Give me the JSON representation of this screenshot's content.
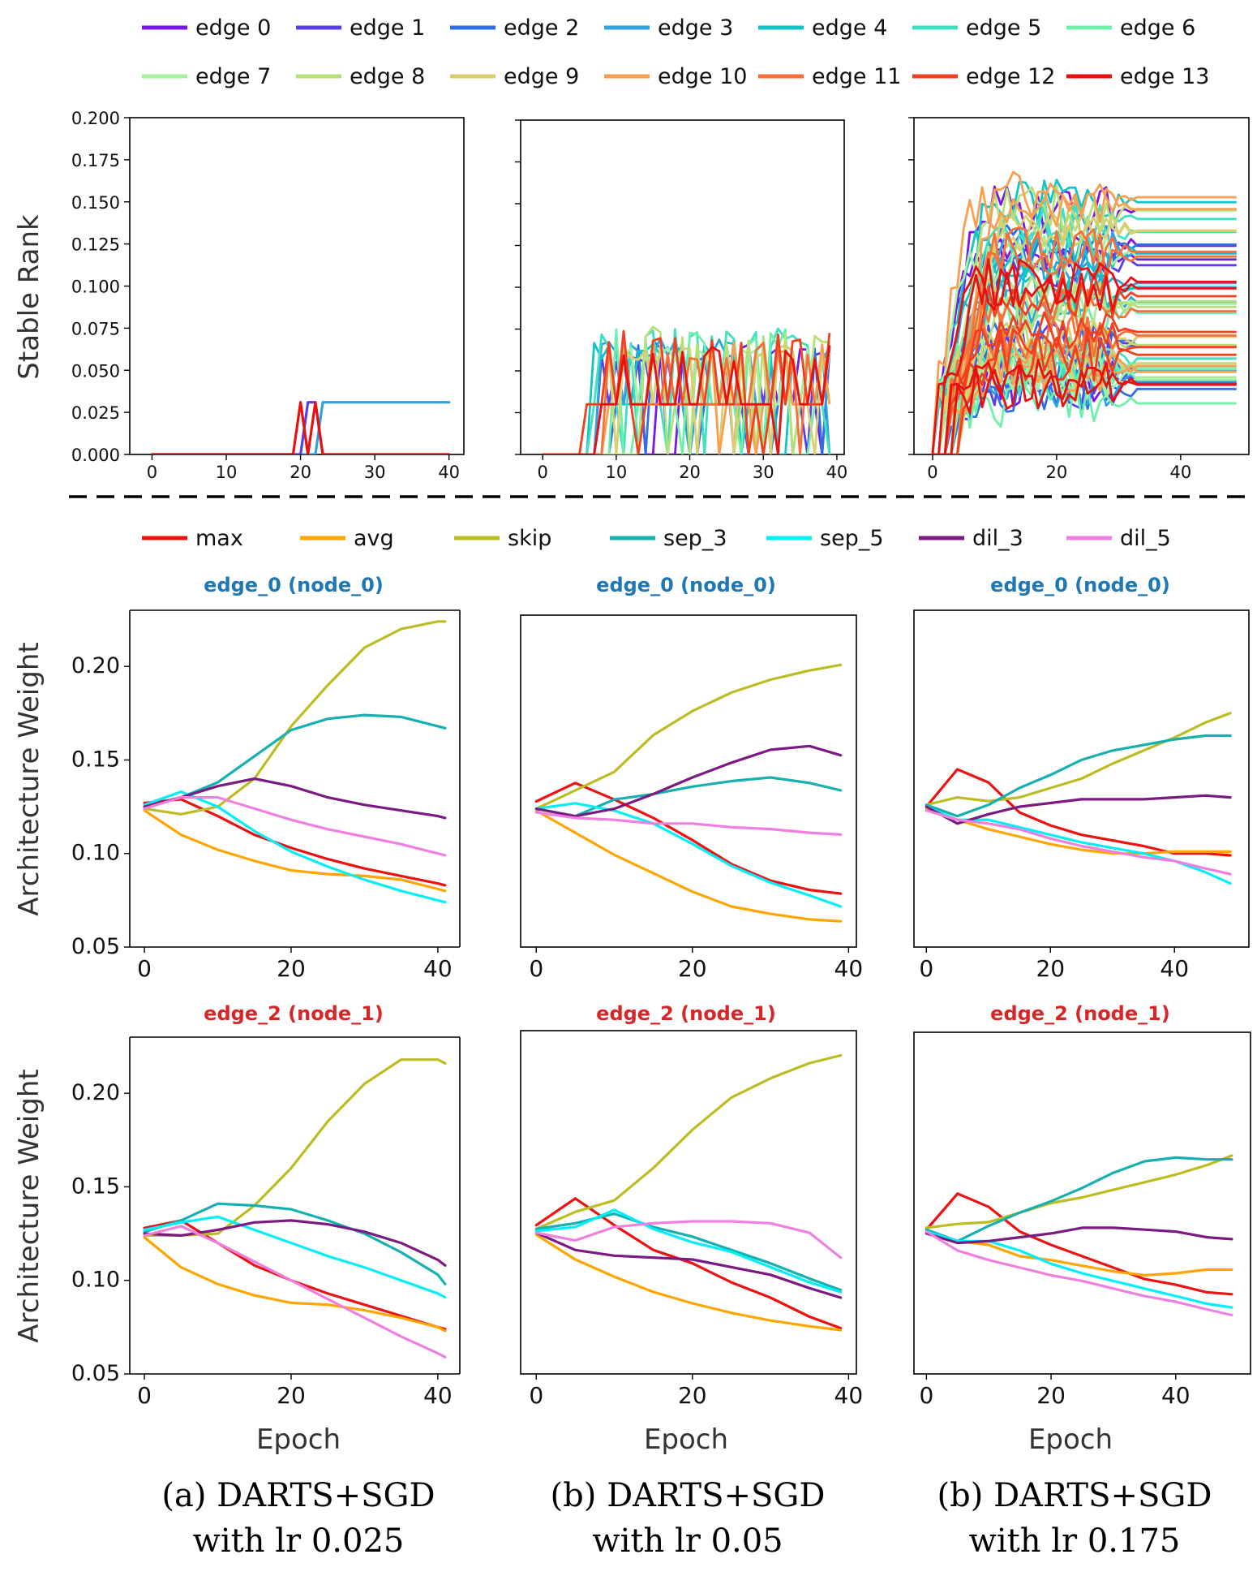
{
  "colors": {
    "edge_palette": [
      "#7b16e8",
      "#5a3ee8",
      "#2f6ee8",
      "#2ea3e0",
      "#12c4c8",
      "#3fe0c0",
      "#6ff0a8",
      "#a8f0a0",
      "#b8e07a",
      "#d8d070",
      "#f8a050",
      "#f87038",
      "#f04020",
      "#e81010"
    ],
    "ops": {
      "max": "#ee1111",
      "avg": "#ffa500",
      "skip": "#bcbd22",
      "sep_3": "#17b0b0",
      "sep_5": "#00f0f8",
      "dil_3": "#7b1a80",
      "dil_5": "#f080e0"
    },
    "subtitle_node0": "#1f77b4",
    "subtitle_node1": "#d62728"
  },
  "legend_edges": [
    "edge 0",
    "edge 1",
    "edge 2",
    "edge 3",
    "edge 4",
    "edge 5",
    "edge 6",
    "edge 7",
    "edge 8",
    "edge 9",
    "edge 10",
    "edge 11",
    "edge 12",
    "edge 13"
  ],
  "legend_ops": [
    "max",
    "avg",
    "skip",
    "sep_3",
    "sep_5",
    "dil_3",
    "dil_5"
  ],
  "labels": {
    "stable_rank": "Stable Rank",
    "arch_weight": "Architecture Weight",
    "epoch": "Epoch",
    "edge0_title": "edge_0 (node_0)",
    "edge2_title": "edge_2 (node_1)"
  },
  "captions": [
    {
      "line1": "(a) DARTS+SGD",
      "line2": "with lr 0.025"
    },
    {
      "line1": "(b) DARTS+SGD",
      "line2": "with lr 0.05"
    },
    {
      "line1": "(b) DARTS+SGD",
      "line2": "with lr 0.175"
    }
  ],
  "chart_data": [
    {
      "id": "sr_a",
      "type": "line",
      "title": "",
      "xlabel": "",
      "ylabel": "Stable Rank",
      "xlim": [
        -3,
        42
      ],
      "ylim": [
        0.0,
        0.2
      ],
      "xticks": [
        0,
        10,
        20,
        30,
        40
      ],
      "yticks": [
        0.0,
        0.025,
        0.05,
        0.075,
        0.1,
        0.125,
        0.15,
        0.175,
        0.2
      ],
      "ytick_labels": [
        "0.000",
        "0.025",
        "0.050",
        "0.075",
        "0.100",
        "0.125",
        "0.150",
        "0.175",
        "0.200"
      ],
      "series": [
        {
          "name": "edge 3",
          "edge": 3,
          "x": [
            0,
            22,
            23,
            24,
            40
          ],
          "values": [
            0,
            0,
            0.031,
            0.031,
            0.031
          ]
        },
        {
          "name": "edge 1",
          "edge": 1,
          "x": [
            0,
            20,
            21,
            22,
            23,
            40
          ],
          "values": [
            0,
            0,
            0.031,
            0.031,
            0,
            0
          ]
        },
        {
          "name": "edge 13",
          "edge": 13,
          "x": [
            0,
            19,
            20,
            21,
            22,
            23,
            40
          ],
          "values": [
            0,
            0,
            0.031,
            0,
            0.031,
            0,
            0
          ]
        }
      ]
    },
    {
      "id": "sr_b",
      "type": "line",
      "title": "",
      "xlabel": "",
      "ylabel": "",
      "xlim": [
        -3,
        41
      ],
      "ylim": [
        0.0,
        0.2
      ],
      "xticks": [
        0,
        10,
        20,
        30,
        40
      ],
      "yticks": [
        0.0,
        0.025,
        0.05,
        0.075,
        0.1,
        0.125,
        0.15,
        0.175,
        0.2
      ],
      "note": "14 noisy edge series",
      "series_count": 14,
      "epochs": 40,
      "seed": 11,
      "plateau": [
        0.055,
        0.073
      ],
      "onset": [
        5,
        12
      ],
      "floor": 0.03
    },
    {
      "id": "sr_c",
      "type": "line",
      "title": "",
      "xlabel": "",
      "ylabel": "",
      "xlim": [
        -3,
        51
      ],
      "ylim": [
        0.0,
        0.2
      ],
      "xticks": [
        0,
        20,
        40
      ],
      "yticks": [
        0.0,
        0.025,
        0.05,
        0.075,
        0.1,
        0.125,
        0.15,
        0.175,
        0.2
      ],
      "note": "14 edges, each drawn several times",
      "series_count": 14,
      "epochs": 50,
      "seed": 29,
      "plateau": [
        0.03,
        0.157
      ],
      "onset": [
        0,
        5
      ],
      "floor": 0.03
    },
    {
      "id": "aw_a_e0",
      "type": "line",
      "title": "edge_0 (node_0)",
      "ylabel": "Architecture Weight",
      "xlim": [
        -2,
        43
      ],
      "ylim": [
        0.05,
        0.23
      ],
      "xticks": [
        0,
        20,
        40
      ],
      "yticks": [
        0.05,
        0.1,
        0.15,
        0.2
      ],
      "ytick_labels": [
        "0.05",
        "0.10",
        "0.15",
        "0.20"
      ],
      "x": [
        0,
        5,
        10,
        15,
        20,
        25,
        30,
        35,
        40,
        41
      ],
      "series": [
        {
          "name": "max",
          "values": [
            0.127,
            0.129,
            0.12,
            0.11,
            0.103,
            0.097,
            0.092,
            0.088,
            0.084,
            0.083
          ]
        },
        {
          "name": "avg",
          "values": [
            0.123,
            0.11,
            0.102,
            0.096,
            0.091,
            0.089,
            0.088,
            0.086,
            0.081,
            0.08
          ]
        },
        {
          "name": "skip",
          "values": [
            0.124,
            0.121,
            0.125,
            0.14,
            0.168,
            0.19,
            0.21,
            0.22,
            0.224,
            0.224
          ]
        },
        {
          "name": "sep_3",
          "values": [
            0.125,
            0.13,
            0.138,
            0.152,
            0.166,
            0.172,
            0.174,
            0.173,
            0.168,
            0.167
          ]
        },
        {
          "name": "sep_5",
          "values": [
            0.126,
            0.133,
            0.125,
            0.112,
            0.101,
            0.093,
            0.086,
            0.08,
            0.075,
            0.074
          ]
        },
        {
          "name": "dil_3",
          "values": [
            0.125,
            0.13,
            0.136,
            0.14,
            0.136,
            0.13,
            0.126,
            0.123,
            0.12,
            0.119
          ]
        },
        {
          "name": "dil_5",
          "values": [
            0.124,
            0.13,
            0.13,
            0.124,
            0.118,
            0.113,
            0.109,
            0.105,
            0.1,
            0.099
          ]
        }
      ]
    },
    {
      "id": "aw_b_e0",
      "type": "line",
      "title": "edge_0 (node_0)",
      "ylabel": "",
      "xlim": [
        -2,
        41
      ],
      "ylim": [
        0.05,
        0.23
      ],
      "xticks": [
        0,
        20,
        40
      ],
      "x": [
        0,
        5,
        10,
        15,
        20,
        25,
        30,
        35,
        39
      ],
      "series": [
        {
          "name": "max",
          "values": [
            0.129,
            0.139,
            0.13,
            0.12,
            0.108,
            0.095,
            0.086,
            0.081,
            0.079
          ]
        },
        {
          "name": "avg",
          "values": [
            0.124,
            0.112,
            0.1,
            0.09,
            0.08,
            0.072,
            0.068,
            0.065,
            0.064
          ]
        },
        {
          "name": "skip",
          "values": [
            0.125,
            0.135,
            0.145,
            0.165,
            0.178,
            0.188,
            0.195,
            0.2,
            0.203
          ]
        },
        {
          "name": "sep_3",
          "values": [
            0.125,
            0.121,
            0.13,
            0.133,
            0.137,
            0.14,
            0.142,
            0.139,
            0.135
          ]
        },
        {
          "name": "sep_5",
          "values": [
            0.125,
            0.128,
            0.124,
            0.117,
            0.106,
            0.094,
            0.085,
            0.078,
            0.072
          ]
        },
        {
          "name": "dil_3",
          "values": [
            0.125,
            0.121,
            0.125,
            0.133,
            0.142,
            0.15,
            0.157,
            0.159,
            0.154
          ]
        },
        {
          "name": "dil_5",
          "values": [
            0.123,
            0.12,
            0.119,
            0.117,
            0.117,
            0.115,
            0.114,
            0.112,
            0.111
          ]
        }
      ]
    },
    {
      "id": "aw_c_e0",
      "type": "line",
      "title": "edge_0 (node_0)",
      "ylabel": "",
      "xlim": [
        -2,
        52
      ],
      "ylim": [
        0.05,
        0.23
      ],
      "xticks": [
        0,
        20,
        40
      ],
      "x": [
        0,
        5,
        10,
        15,
        20,
        25,
        30,
        35,
        40,
        45,
        49
      ],
      "series": [
        {
          "name": "max",
          "values": [
            0.125,
            0.145,
            0.138,
            0.122,
            0.115,
            0.11,
            0.107,
            0.104,
            0.1,
            0.1,
            0.099
          ]
        },
        {
          "name": "avg",
          "values": [
            0.124,
            0.118,
            0.113,
            0.109,
            0.105,
            0.102,
            0.1,
            0.1,
            0.101,
            0.101,
            0.101
          ]
        },
        {
          "name": "skip",
          "values": [
            0.126,
            0.13,
            0.128,
            0.13,
            0.135,
            0.14,
            0.148,
            0.155,
            0.162,
            0.17,
            0.175
          ]
        },
        {
          "name": "sep_3",
          "values": [
            0.126,
            0.12,
            0.126,
            0.135,
            0.142,
            0.15,
            0.155,
            0.158,
            0.161,
            0.163,
            0.163
          ]
        },
        {
          "name": "sep_5",
          "values": [
            0.125,
            0.118,
            0.118,
            0.114,
            0.11,
            0.106,
            0.103,
            0.1,
            0.096,
            0.09,
            0.084
          ]
        },
        {
          "name": "dil_3",
          "values": [
            0.125,
            0.116,
            0.121,
            0.125,
            0.127,
            0.129,
            0.129,
            0.129,
            0.13,
            0.131,
            0.13
          ]
        },
        {
          "name": "dil_5",
          "values": [
            0.123,
            0.118,
            0.116,
            0.113,
            0.108,
            0.104,
            0.101,
            0.098,
            0.096,
            0.092,
            0.089
          ]
        }
      ]
    },
    {
      "id": "aw_a_e2",
      "type": "line",
      "title": "edge_2 (node_1)",
      "ylabel": "Architecture Weight",
      "xlim": [
        -2,
        43
      ],
      "ylim": [
        0.05,
        0.23
      ],
      "xticks": [
        0,
        20,
        40
      ],
      "yticks": [
        0.05,
        0.1,
        0.15,
        0.2
      ],
      "ytick_labels": [
        "0.05",
        "0.10",
        "0.15",
        "0.20"
      ],
      "x": [
        0,
        5,
        10,
        15,
        20,
        25,
        30,
        35,
        40,
        41
      ],
      "series": [
        {
          "name": "max",
          "values": [
            0.128,
            0.132,
            0.12,
            0.108,
            0.1,
            0.093,
            0.087,
            0.081,
            0.075,
            0.074
          ]
        },
        {
          "name": "avg",
          "values": [
            0.123,
            0.107,
            0.098,
            0.092,
            0.088,
            0.087,
            0.084,
            0.08,
            0.075,
            0.073
          ]
        },
        {
          "name": "skip",
          "values": [
            0.124,
            0.124,
            0.125,
            0.14,
            0.16,
            0.185,
            0.205,
            0.218,
            0.218,
            0.216
          ]
        },
        {
          "name": "sep_3",
          "values": [
            0.126,
            0.132,
            0.141,
            0.14,
            0.138,
            0.132,
            0.125,
            0.115,
            0.103,
            0.098
          ]
        },
        {
          "name": "sep_5",
          "values": [
            0.127,
            0.131,
            0.134,
            0.127,
            0.12,
            0.113,
            0.107,
            0.1,
            0.093,
            0.091
          ]
        },
        {
          "name": "dil_3",
          "values": [
            0.125,
            0.124,
            0.127,
            0.131,
            0.132,
            0.13,
            0.126,
            0.12,
            0.111,
            0.108
          ]
        },
        {
          "name": "dil_5",
          "values": [
            0.124,
            0.129,
            0.12,
            0.11,
            0.1,
            0.09,
            0.08,
            0.07,
            0.061,
            0.059
          ]
        }
      ]
    },
    {
      "id": "aw_b_e2",
      "type": "line",
      "title": "edge_2 (node_1)",
      "ylabel": "",
      "xlim": [
        -2,
        41
      ],
      "ylim": [
        0.05,
        0.23
      ],
      "xticks": [
        0,
        20,
        40
      ],
      "x": [
        0,
        5,
        10,
        15,
        20,
        25,
        30,
        35,
        39
      ],
      "series": [
        {
          "name": "max",
          "values": [
            0.128,
            0.142,
            0.128,
            0.115,
            0.108,
            0.098,
            0.09,
            0.08,
            0.074
          ]
        },
        {
          "name": "avg",
          "values": [
            0.123,
            0.11,
            0.101,
            0.093,
            0.087,
            0.082,
            0.078,
            0.075,
            0.073
          ]
        },
        {
          "name": "skip",
          "values": [
            0.126,
            0.135,
            0.141,
            0.158,
            0.178,
            0.195,
            0.205,
            0.213,
            0.217
          ]
        },
        {
          "name": "sep_3",
          "values": [
            0.126,
            0.129,
            0.134,
            0.127,
            0.122,
            0.115,
            0.108,
            0.1,
            0.094
          ]
        },
        {
          "name": "sep_5",
          "values": [
            0.125,
            0.127,
            0.136,
            0.126,
            0.119,
            0.114,
            0.106,
            0.098,
            0.093
          ]
        },
        {
          "name": "dil_3",
          "values": [
            0.124,
            0.115,
            0.112,
            0.111,
            0.11,
            0.106,
            0.102,
            0.095,
            0.09
          ]
        },
        {
          "name": "dil_5",
          "values": [
            0.124,
            0.12,
            0.127,
            0.129,
            0.13,
            0.13,
            0.129,
            0.124,
            0.111
          ]
        }
      ]
    },
    {
      "id": "aw_c_e2",
      "type": "line",
      "title": "edge_2 (node_1)",
      "ylabel": "",
      "xlim": [
        -2,
        52
      ],
      "ylim": [
        0.05,
        0.23
      ],
      "xticks": [
        0,
        20,
        40
      ],
      "x": [
        0,
        5,
        10,
        15,
        20,
        25,
        30,
        35,
        40,
        45,
        49
      ],
      "series": [
        {
          "name": "max",
          "values": [
            0.126,
            0.145,
            0.138,
            0.125,
            0.118,
            0.112,
            0.106,
            0.1,
            0.097,
            0.093,
            0.092
          ]
        },
        {
          "name": "avg",
          "values": [
            0.125,
            0.12,
            0.118,
            0.112,
            0.11,
            0.107,
            0.104,
            0.102,
            0.103,
            0.105,
            0.105
          ]
        },
        {
          "name": "skip",
          "values": [
            0.127,
            0.129,
            0.13,
            0.135,
            0.14,
            0.143,
            0.147,
            0.151,
            0.155,
            0.16,
            0.165
          ]
        },
        {
          "name": "sep_3",
          "values": [
            0.126,
            0.12,
            0.128,
            0.135,
            0.141,
            0.148,
            0.156,
            0.162,
            0.164,
            0.163,
            0.163
          ]
        },
        {
          "name": "sep_5",
          "values": [
            0.125,
            0.12,
            0.12,
            0.115,
            0.108,
            0.103,
            0.099,
            0.095,
            0.091,
            0.087,
            0.085
          ]
        },
        {
          "name": "dil_3",
          "values": [
            0.124,
            0.119,
            0.12,
            0.122,
            0.124,
            0.127,
            0.127,
            0.126,
            0.125,
            0.122,
            0.121
          ]
        },
        {
          "name": "dil_5",
          "values": [
            0.125,
            0.115,
            0.11,
            0.106,
            0.102,
            0.099,
            0.095,
            0.091,
            0.088,
            0.084,
            0.081
          ]
        }
      ]
    }
  ]
}
